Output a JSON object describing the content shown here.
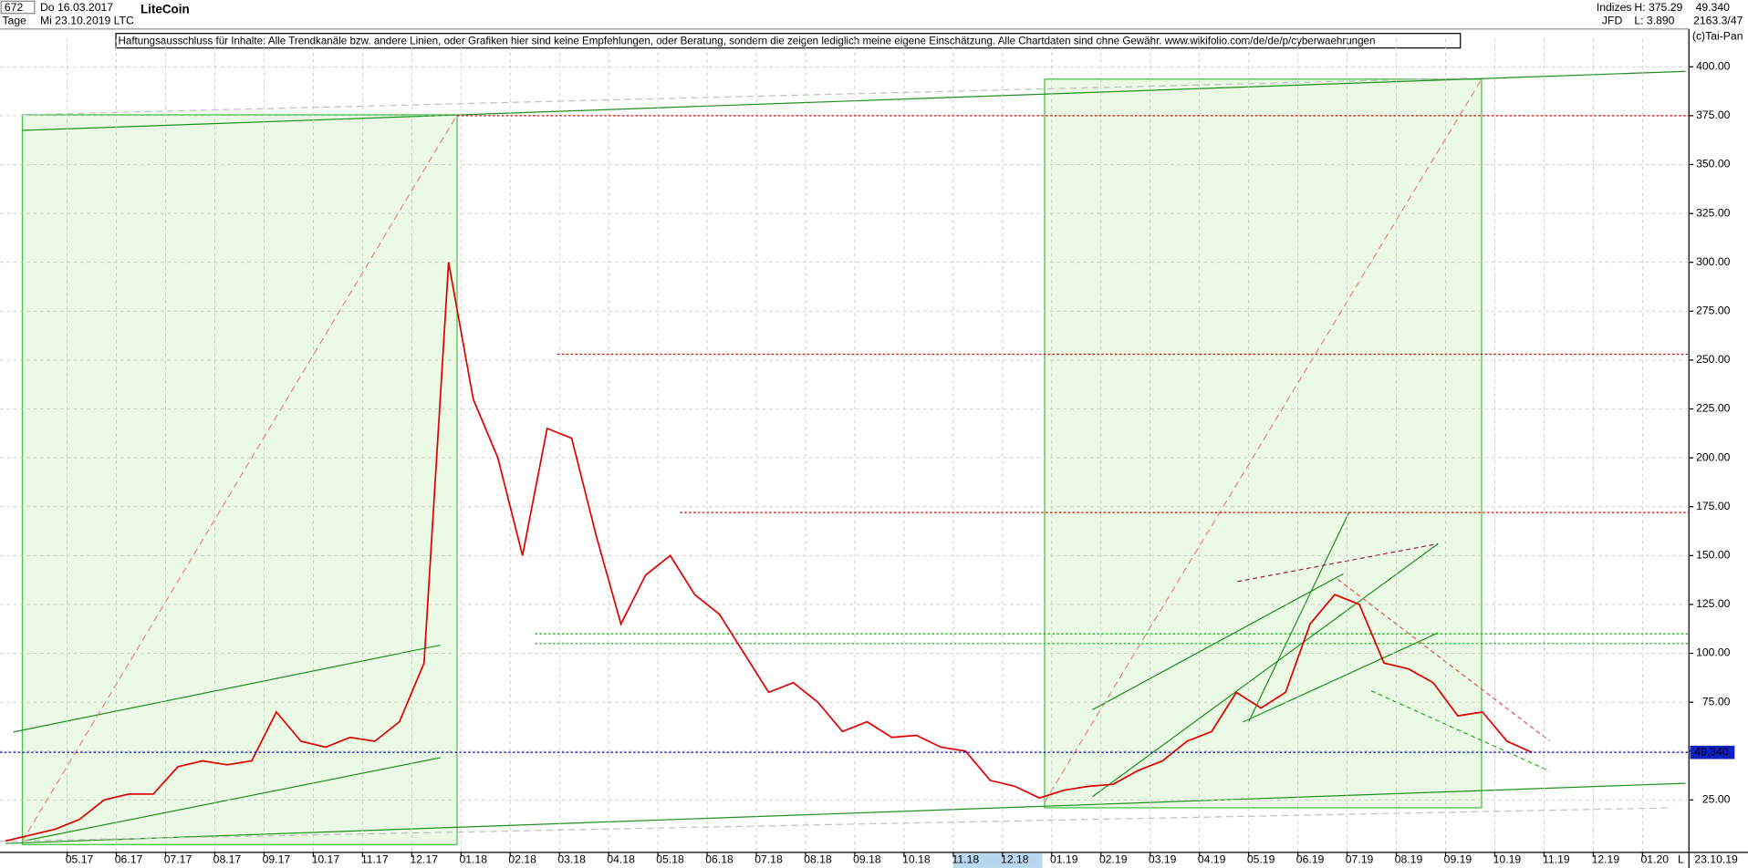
{
  "header": {
    "count": "672",
    "start_date": "Do 16.03.2017",
    "period": "Tage",
    "end_date": "Mi 23.10.2019",
    "symbol": "LTC",
    "name": "LiteCoin",
    "disclaimer": "Haftungsausschluss für Inhalte: Alle Trendkanäle bzw. andere Linien, oder Grafiken hier sind keine Empfehlungen, oder Beratung, sondern die zeigen lediglich meine eigene Einschätzung. Alle Chartdaten sind ohne Gewähr.  www.wikifolio.com/de/de/p/cyberwaehrungen",
    "group": "Indizes",
    "source": "JFD",
    "high": "H: 375.29",
    "low": "L: 3.890",
    "last": "49.340",
    "info": "2163.3/47",
    "copyright": "(c)Tai-Pan",
    "current_date": "23.10.19",
    "scale_mode": "L"
  },
  "chart_data": {
    "type": "line",
    "title": "LiteCoin",
    "categories": [
      null,
      null,
      null,
      "05.17",
      null,
      "06.17",
      null,
      "07.17",
      null,
      "08.17",
      null,
      "09.17",
      null,
      "10.17",
      null,
      "11.17",
      null,
      "12.17",
      null,
      "01.18",
      null,
      "02.18",
      null,
      "03.18",
      null,
      "04.18",
      null,
      "05.18",
      null,
      "06.18",
      null,
      "07.18",
      null,
      "08.18",
      null,
      "09.18",
      null,
      "10.18",
      null,
      "11.18",
      null,
      "12.18",
      null,
      "01.19",
      null,
      "02.19",
      null,
      "03.19",
      null,
      "04.19",
      null,
      "05.19",
      null,
      "06.19",
      null,
      "07.19",
      null,
      "08.19",
      null,
      "09.19",
      null,
      "10.19",
      null,
      "11.19",
      null,
      "12.19",
      null,
      "01.20"
    ],
    "series": [
      {
        "name": "LTC",
        "color": "#e00000",
        "values": [
          4,
          7,
          10,
          15,
          25,
          28,
          28,
          42,
          45,
          43,
          45,
          70,
          55,
          52,
          57,
          55,
          65,
          95,
          300,
          230,
          200,
          150,
          215,
          210,
          160,
          115,
          140,
          150,
          130,
          120,
          100,
          80,
          85,
          75,
          60,
          65,
          57,
          58,
          52,
          50,
          35,
          32,
          26,
          30,
          32,
          33,
          40,
          45,
          55,
          60,
          80,
          72,
          80,
          115,
          130,
          125,
          95,
          92,
          85,
          68,
          70,
          55,
          49.34,
          null,
          null,
          null,
          null,
          null
        ]
      }
    ],
    "last_value_label": "49.340",
    "levels": [
      {
        "value": 375,
        "color": "#d00000"
      },
      {
        "value": 253,
        "color": "#d00000"
      },
      {
        "value": 172,
        "color": "#d00000"
      },
      {
        "value": 110,
        "color": "#00b000"
      },
      {
        "value": 105,
        "color": "#00b000"
      }
    ],
    "ylim": [
      3.89,
      408.5
    ],
    "yticks": [
      {
        "value": 25,
        "label": "25.00"
      },
      {
        "value": 50,
        "label": "50.00"
      },
      {
        "value": 75,
        "label": "75.00"
      },
      {
        "value": 100,
        "label": "100.00"
      },
      {
        "value": 125,
        "label": "125.00"
      },
      {
        "value": 150,
        "label": "150.00"
      },
      {
        "value": 175,
        "label": "175.00"
      },
      {
        "value": 200,
        "label": "200.00"
      },
      {
        "value": 225,
        "label": "225.00"
      },
      {
        "value": 250,
        "label": "250.00"
      },
      {
        "value": 275,
        "label": "275.00"
      },
      {
        "value": 300,
        "label": "300.00"
      },
      {
        "value": 325,
        "label": "325.00"
      },
      {
        "value": 350,
        "label": "350.00"
      },
      {
        "value": 375,
        "label": "375.00"
      },
      {
        "value": 400,
        "label": "400.00"
      }
    ],
    "grid": true
  }
}
